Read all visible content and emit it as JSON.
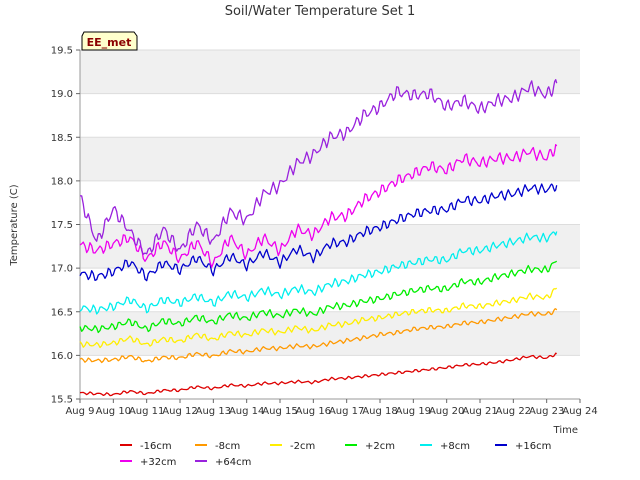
{
  "chart_data": {
    "type": "line",
    "title": "Soil/Water Temperature Set 1",
    "xlabel": "Time",
    "ylabel": "Temperature (C)",
    "badge": "EE_met",
    "xlim": [
      9,
      24
    ],
    "ylim": [
      15.5,
      19.5
    ],
    "x_ticks": [
      "Aug 9",
      "Aug 10",
      "Aug 11",
      "Aug 12",
      "Aug 13",
      "Aug 14",
      "Aug 15",
      "Aug 16",
      "Aug 17",
      "Aug 18",
      "Aug 19",
      "Aug 20",
      "Aug 21",
      "Aug 22",
      "Aug 23",
      "Aug 24"
    ],
    "y_ticks": [
      "15.5",
      "16.0",
      "16.5",
      "17.0",
      "17.5",
      "18.0",
      "18.5",
      "19.0",
      "19.5"
    ],
    "x": [
      9.0,
      9.5,
      10.0,
      10.5,
      11.0,
      11.5,
      12.0,
      12.5,
      13.0,
      13.5,
      14.0,
      14.5,
      15.0,
      15.5,
      16.0,
      16.5,
      17.0,
      17.5,
      18.0,
      18.5,
      19.0,
      19.5,
      20.0,
      20.5,
      21.0,
      21.5,
      22.0,
      22.5,
      23.0,
      23.3
    ],
    "series": [
      {
        "name": "-16cm",
        "color": "#dd0000",
        "values": [
          15.57,
          15.56,
          15.55,
          15.59,
          15.56,
          15.6,
          15.6,
          15.64,
          15.62,
          15.66,
          15.65,
          15.68,
          15.68,
          15.7,
          15.69,
          15.73,
          15.74,
          15.76,
          15.78,
          15.8,
          15.82,
          15.84,
          15.86,
          15.89,
          15.9,
          15.92,
          15.95,
          15.99,
          15.97,
          16.02
        ]
      },
      {
        "name": "-8cm",
        "color": "#ff9900",
        "values": [
          15.95,
          15.94,
          15.95,
          15.99,
          15.93,
          15.98,
          15.97,
          16.02,
          15.99,
          16.05,
          16.04,
          16.08,
          16.08,
          16.11,
          16.1,
          16.14,
          16.17,
          16.2,
          16.24,
          16.26,
          16.3,
          16.32,
          16.33,
          16.37,
          16.38,
          16.41,
          16.44,
          16.48,
          16.47,
          16.52
        ]
      },
      {
        "name": "-2cm",
        "color": "#ffee00",
        "values": [
          16.13,
          16.12,
          16.14,
          16.2,
          16.12,
          16.19,
          16.16,
          16.24,
          16.18,
          16.26,
          16.23,
          16.29,
          16.26,
          16.32,
          16.28,
          16.35,
          16.36,
          16.41,
          16.43,
          16.47,
          16.5,
          16.52,
          16.51,
          16.57,
          16.56,
          16.6,
          16.63,
          16.68,
          16.66,
          16.77
        ]
      },
      {
        "name": "+2cm",
        "color": "#00ee00",
        "values": [
          16.32,
          16.3,
          16.33,
          16.39,
          16.3,
          16.4,
          16.36,
          16.44,
          16.38,
          16.47,
          16.42,
          16.5,
          16.45,
          16.52,
          16.47,
          16.56,
          16.57,
          16.62,
          16.65,
          16.7,
          16.74,
          16.77,
          16.76,
          16.85,
          16.84,
          16.9,
          16.94,
          16.99,
          16.98,
          17.08
        ]
      },
      {
        "name": "+8cm",
        "color": "#00eeee",
        "values": [
          16.55,
          16.52,
          16.56,
          16.64,
          16.53,
          16.64,
          16.6,
          16.68,
          16.6,
          16.71,
          16.66,
          16.75,
          16.69,
          16.77,
          16.72,
          16.82,
          16.85,
          16.92,
          16.96,
          17.02,
          17.06,
          17.1,
          17.09,
          17.2,
          17.2,
          17.26,
          17.3,
          17.36,
          17.34,
          17.42
        ]
      },
      {
        "name": "+16cm",
        "color": "#0000cc",
        "values": [
          16.94,
          16.9,
          16.96,
          17.07,
          16.9,
          17.06,
          16.98,
          17.12,
          16.97,
          17.14,
          17.03,
          17.18,
          17.06,
          17.22,
          17.12,
          17.28,
          17.3,
          17.41,
          17.47,
          17.55,
          17.62,
          17.66,
          17.67,
          17.78,
          17.77,
          17.83,
          17.85,
          17.92,
          17.9,
          17.95
        ]
      },
      {
        "name": "+32cm",
        "color": "#ee00ee",
        "values": [
          17.27,
          17.2,
          17.28,
          17.35,
          17.1,
          17.3,
          17.1,
          17.3,
          17.05,
          17.35,
          17.15,
          17.35,
          17.2,
          17.45,
          17.38,
          17.58,
          17.6,
          17.78,
          17.88,
          18.0,
          18.08,
          18.17,
          18.12,
          18.26,
          18.2,
          18.26,
          18.26,
          18.34,
          18.26,
          18.4
        ]
      },
      {
        "name": "+64cm",
        "color": "#9922dd",
        "values": [
          17.82,
          17.3,
          17.68,
          17.42,
          17.15,
          17.45,
          17.2,
          17.5,
          17.3,
          17.65,
          17.55,
          17.85,
          17.95,
          18.2,
          18.3,
          18.5,
          18.55,
          18.75,
          18.85,
          19.02,
          18.98,
          19.0,
          18.85,
          18.92,
          18.82,
          18.92,
          18.95,
          19.08,
          18.98,
          19.12
        ]
      }
    ]
  }
}
